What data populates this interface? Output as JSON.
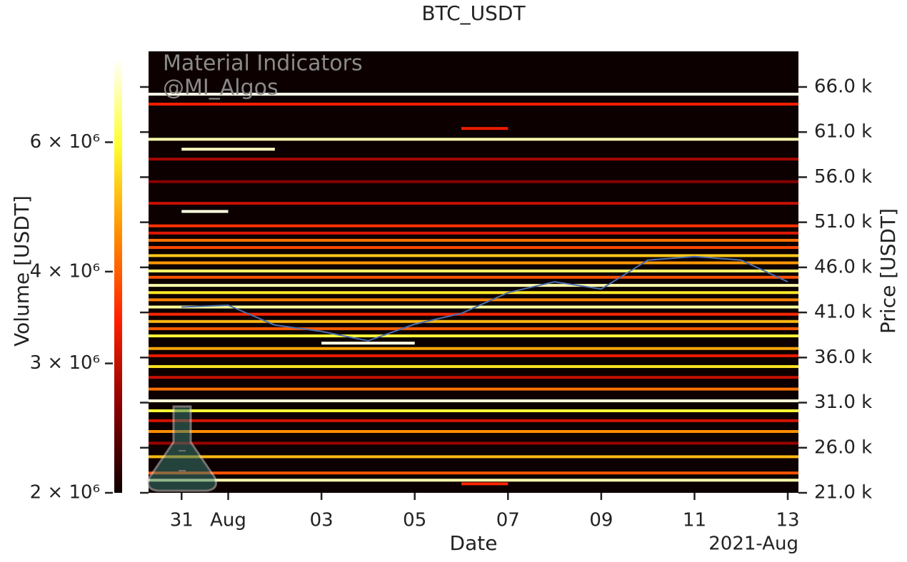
{
  "chart_data": {
    "type": "heatmap",
    "title": "BTC_USDT",
    "xlabel": "Date",
    "x_offset_label": "2021-Aug",
    "ylabel": "Price [USDT]",
    "annotations": [
      "Material Indicators",
      "@MI_Algos"
    ],
    "xlim": [
      "2021-07-30T07:00",
      "2021-08-13T05:30"
    ],
    "xticks": [
      {
        "value": "2021-07-31",
        "label": "31"
      },
      {
        "value": "2021-08-01",
        "label": "Aug"
      },
      {
        "value": "2021-08-03",
        "label": "03"
      },
      {
        "value": "2021-08-05",
        "label": "05"
      },
      {
        "value": "2021-08-07",
        "label": "07"
      },
      {
        "value": "2021-08-09",
        "label": "09"
      },
      {
        "value": "2021-08-11",
        "label": "11"
      },
      {
        "value": "2021-08-13",
        "label": "13"
      }
    ],
    "ylim": [
      21000,
      69950
    ],
    "yticks": [
      {
        "value": 21000,
        "label": "21.0 k"
      },
      {
        "value": 26000,
        "label": "26.0 k"
      },
      {
        "value": 31000,
        "label": "31.0 k"
      },
      {
        "value": 36000,
        "label": "36.0 k"
      },
      {
        "value": 41000,
        "label": "41.0 k"
      },
      {
        "value": 46000,
        "label": "46.0 k"
      },
      {
        "value": 51000,
        "label": "51.0 k"
      },
      {
        "value": 56000,
        "label": "56.0 k"
      },
      {
        "value": 61000,
        "label": "61.0 k"
      },
      {
        "value": 66000,
        "label": "66.0 k"
      }
    ],
    "background": "#0d0000",
    "colorbar": {
      "label": "Volume [USDT]",
      "scale": "log",
      "lim": [
        2000000,
        7800000
      ],
      "ticks": [
        {
          "value": 2000000,
          "label": "2 × 10⁶"
        },
        {
          "value": 3000000,
          "label": "3 × 10⁶"
        },
        {
          "value": 4000000,
          "label": "4 × 10⁶"
        },
        {
          "value": 6000000,
          "label": "6 × 10⁶"
        }
      ],
      "colors": [
        "#0d0000",
        "#8b0000",
        "#ff2000",
        "#ff9000",
        "#ffff30",
        "#ffffff"
      ]
    },
    "price": {
      "color": "#4a6fb0",
      "x": [
        "2021-07-31",
        "2021-08-01",
        "2021-08-02",
        "2021-08-03",
        "2021-08-04",
        "2021-08-05",
        "2021-08-06",
        "2021-08-07",
        "2021-08-08",
        "2021-08-09",
        "2021-08-10",
        "2021-08-11",
        "2021-08-12",
        "2021-08-13"
      ],
      "values": [
        41600,
        41800,
        39600,
        38900,
        37850,
        39700,
        40900,
        43200,
        44400,
        43600,
        46800,
        47200,
        46800,
        44400
      ]
    },
    "levels": [
      {
        "price": 65200,
        "volume": 7600000
      },
      {
        "price": 64100,
        "volume": 3400000
      },
      {
        "price": 60200,
        "volume": 7000000
      },
      {
        "price": 61400,
        "volume": 3300000,
        "from": "2021-08-06",
        "to": "2021-08-07"
      },
      {
        "price": 59100,
        "volume": 7200000,
        "from": "2021-07-31",
        "to": "2021-08-02"
      },
      {
        "price": 58000,
        "volume": 2800000
      },
      {
        "price": 55500,
        "volume": 2600000
      },
      {
        "price": 53100,
        "volume": 3000000
      },
      {
        "price": 52200,
        "volume": 7500000,
        "from": "2021-07-31",
        "to": "2021-08-01"
      },
      {
        "price": 50600,
        "volume": 3600000
      },
      {
        "price": 49800,
        "volume": 3200000
      },
      {
        "price": 49000,
        "volume": 4200000
      },
      {
        "price": 48200,
        "volume": 3800000
      },
      {
        "price": 47300,
        "volume": 5200000
      },
      {
        "price": 46500,
        "volume": 4600000
      },
      {
        "price": 45600,
        "volume": 6400000
      },
      {
        "price": 44900,
        "volume": 3900000
      },
      {
        "price": 44000,
        "volume": 7000000
      },
      {
        "price": 43200,
        "volume": 5600000
      },
      {
        "price": 42400,
        "volume": 4400000
      },
      {
        "price": 41600,
        "volume": 6800000
      },
      {
        "price": 40800,
        "volume": 3500000
      },
      {
        "price": 40000,
        "volume": 5000000
      },
      {
        "price": 39200,
        "volume": 4000000
      },
      {
        "price": 38400,
        "volume": 6000000
      },
      {
        "price": 37600,
        "volume": 7500000,
        "from": "2021-08-03",
        "to": "2021-08-05"
      },
      {
        "price": 37000,
        "volume": 4800000
      },
      {
        "price": 36200,
        "volume": 3300000
      },
      {
        "price": 35000,
        "volume": 5500000
      },
      {
        "price": 33800,
        "volume": 3000000
      },
      {
        "price": 32500,
        "volume": 4200000
      },
      {
        "price": 31200,
        "volume": 7400000
      },
      {
        "price": 30100,
        "volume": 6000000
      },
      {
        "price": 29000,
        "volume": 3100000
      },
      {
        "price": 27800,
        "volume": 4500000
      },
      {
        "price": 26500,
        "volume": 2700000
      },
      {
        "price": 25000,
        "volume": 5000000
      },
      {
        "price": 23200,
        "volume": 3900000
      },
      {
        "price": 22400,
        "volume": 7000000
      },
      {
        "price": 22000,
        "volume": 3500000,
        "from": "2021-08-06",
        "to": "2021-08-07"
      }
    ]
  }
}
